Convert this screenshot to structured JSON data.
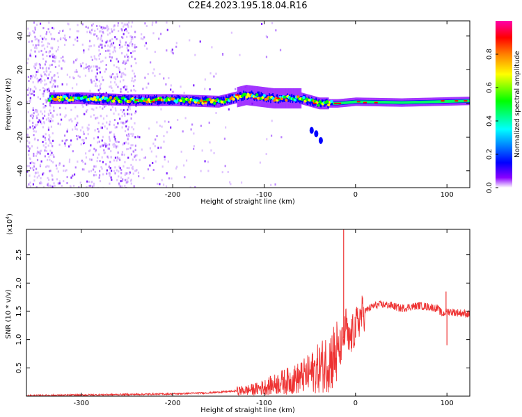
{
  "title": "C2E4.2023.195.18.04.R16",
  "colors": {
    "plot_border": "#000000",
    "snr_line": "#ee3333",
    "tick_color": "#000000"
  },
  "chart_data": [
    {
      "type": "heatmap",
      "title": "C2E4.2023.195.18.04.R16",
      "xlabel": "Height of straight line (km)",
      "ylabel": "Frequency (Hz)",
      "xlim": [
        -360,
        125
      ],
      "ylim": [
        -50,
        49
      ],
      "x_ticks": [
        -300,
        -200,
        -100,
        0,
        100
      ],
      "x_tick_labels": [
        "-300",
        "-200",
        "-100",
        "0",
        "100"
      ],
      "y_ticks": [
        40,
        20,
        0,
        -20,
        -40
      ],
      "y_tick_labels": [
        "40",
        "20",
        "0",
        "-20",
        "-40"
      ],
      "colorbar": {
        "label": "Normalized spectral amplitude",
        "range": [
          0,
          1
        ],
        "ticks": [
          0.0,
          0.2,
          0.4,
          0.6,
          0.8
        ],
        "tick_labels": [
          "0.0",
          "0.2",
          "0.4",
          "0.6",
          "0.8"
        ],
        "colormap": [
          "#ffffff",
          "#8a00ff",
          "#0000ff",
          "#00ffff",
          "#00ff00",
          "#ffff00",
          "#ff8000",
          "#ff0000",
          "#ff00aa"
        ]
      },
      "ridge": {
        "description_free": true,
        "points": [
          [
            -335,
            3
          ],
          [
            -300,
            3
          ],
          [
            -250,
            2
          ],
          [
            -200,
            2
          ],
          [
            -150,
            1
          ],
          [
            -120,
            5
          ],
          [
            -90,
            3
          ],
          [
            -60,
            3
          ],
          [
            -40,
            0
          ],
          [
            -20,
            0
          ],
          [
            0,
            1
          ],
          [
            50,
            0.5
          ],
          [
            125,
            1.5
          ]
        ]
      },
      "branch": {
        "points": [
          [
            -48,
            -16
          ],
          [
            -43,
            -18
          ],
          [
            -38,
            -22
          ]
        ]
      },
      "grid": false
    },
    {
      "type": "line",
      "xlabel": "Height of straight line (km)",
      "ylabel": "SNR (10 * v/v)",
      "scale_label": "(x10",
      "scale_exp": "4",
      "scale_close": ")",
      "xlim": [
        -360,
        125
      ],
      "ylim": [
        0,
        2.95
      ],
      "x_ticks": [
        -300,
        -200,
        -100,
        0,
        100
      ],
      "x_tick_labels": [
        "-300",
        "-200",
        "-100",
        "0",
        "100"
      ],
      "y_ticks": [
        0.5,
        1.0,
        1.5,
        2.0,
        2.5
      ],
      "y_tick_labels": [
        "0.5",
        "1.0",
        "1.5",
        "2.0",
        "2.5"
      ],
      "series": [
        {
          "x": [
            -360,
            -300,
            -250,
            -200,
            -160,
            -130,
            -110,
            -100,
            -90,
            -80,
            -70,
            -60,
            -50,
            -40,
            -30,
            -20,
            -15,
            -12,
            -10,
            -8,
            -5,
            0,
            5,
            10,
            20,
            30,
            40,
            50,
            60,
            70,
            80,
            90,
            95,
            100,
            110,
            125
          ],
          "y": [
            0.01,
            0.02,
            0.03,
            0.04,
            0.06,
            0.09,
            0.12,
            0.16,
            0.2,
            0.25,
            0.28,
            0.33,
            0.4,
            0.5,
            0.62,
            0.75,
            0.9,
            1.1,
            1.3,
            0.9,
            1.05,
            1.2,
            1.4,
            1.5,
            1.6,
            1.62,
            1.6,
            1.55,
            1.58,
            1.6,
            1.58,
            1.55,
            1.45,
            1.5,
            1.48,
            1.45
          ]
        }
      ],
      "spikes": [
        [
          -13,
          2.95
        ],
        [
          99,
          1.85
        ],
        [
          100,
          0.9
        ]
      ],
      "grid": false
    }
  ]
}
